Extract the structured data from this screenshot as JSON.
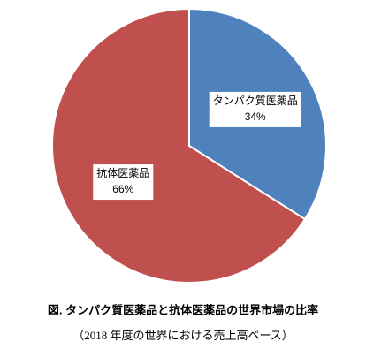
{
  "chart_data": {
    "type": "pie",
    "title": "図. タンパク質医薬品と抗体医薬品の世界市場の比率",
    "subtitle": "（2018 年度の世界における売上高ベース）",
    "categories": [
      "タンパク質医薬品",
      "抗体医薬品"
    ],
    "values": [
      34,
      66
    ],
    "value_labels": [
      "34%",
      "66%"
    ],
    "colors": [
      "#4f81bd",
      "#c0504d"
    ]
  }
}
